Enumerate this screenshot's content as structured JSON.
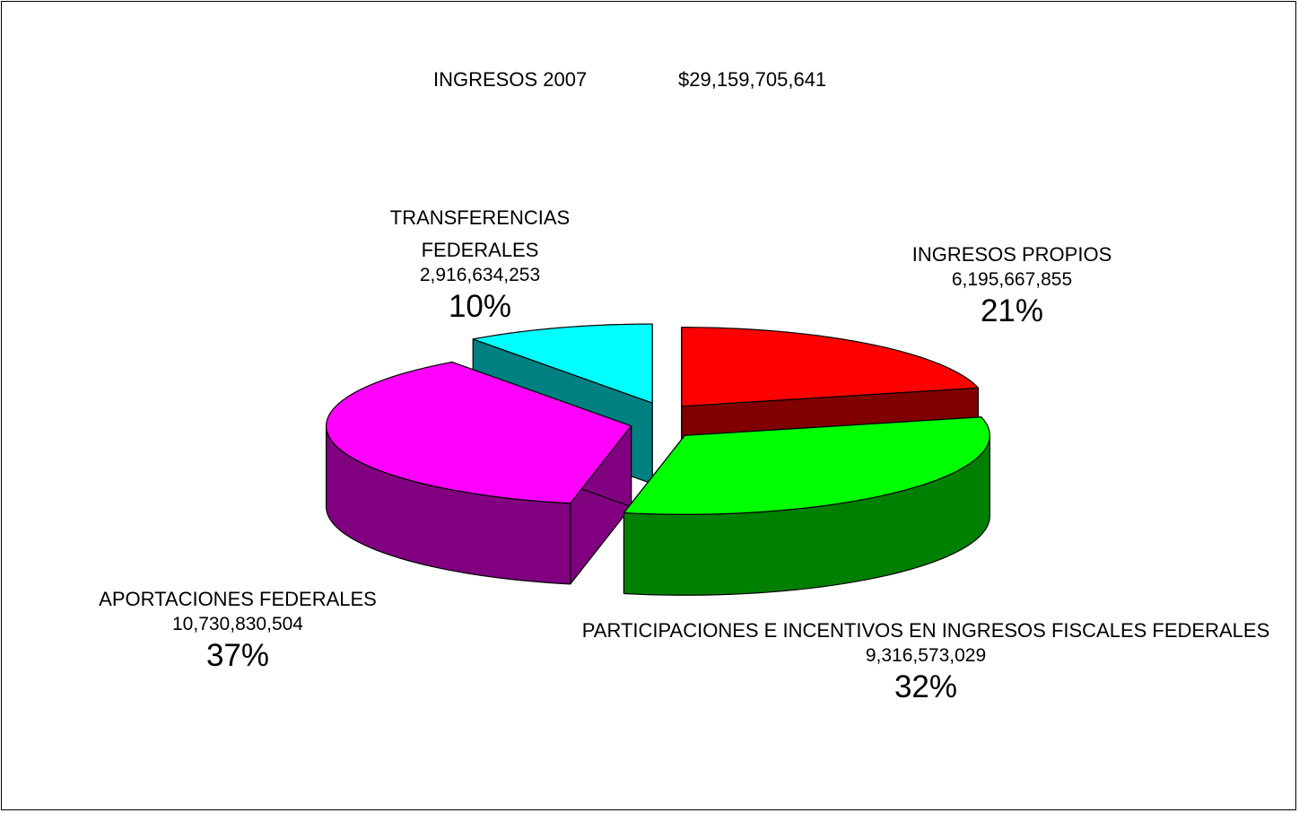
{
  "chart_data": {
    "type": "pie3d",
    "title": "INGRESOS 2007",
    "total": "$29,159,705,641",
    "categories": [
      "INGRESOS PROPIOS",
      "PARTICIPACIONES E INCENTIVOS EN INGRESOS FISCALES FEDERALES",
      "APORTACIONES FEDERALES",
      "TRANSFERENCIAS FEDERALES"
    ],
    "values": [
      6195667855,
      9316573029,
      10730830504,
      2916634253
    ],
    "value_labels": [
      "6,195,667,855",
      "9,316,573,029",
      "10,730,830,504",
      "2,916,634,253"
    ],
    "percent_labels": [
      "21%",
      "32%",
      "37%",
      "10%"
    ],
    "colors": [
      "#ff0000",
      "#00ff00",
      "#ff00ff",
      "#00ffff"
    ]
  }
}
